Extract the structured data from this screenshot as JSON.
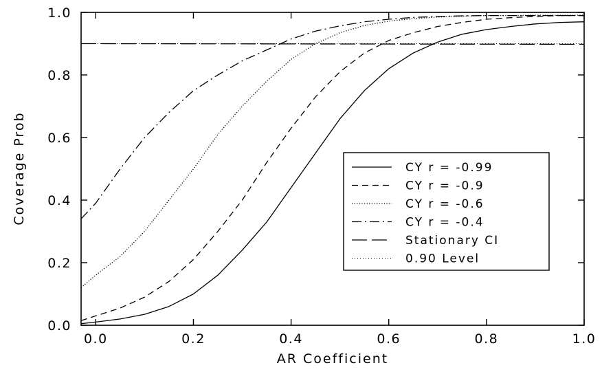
{
  "chart_data": {
    "type": "line",
    "xlabel": "AR Coefficient",
    "ylabel": "Coverage Prob",
    "xlim": [
      -0.03,
      1.0
    ],
    "ylim": [
      0.0,
      1.0
    ],
    "xticks": [
      "0.0",
      "0.2",
      "0.4",
      "0.6",
      "0.8",
      "1.0"
    ],
    "yticks": [
      "0.0",
      "0.2",
      "0.4",
      "0.6",
      "0.8",
      "1.0"
    ],
    "grid": false,
    "legend_position": "center-right",
    "series": [
      {
        "name": "CY r = -0.99",
        "dash": "solid",
        "x": [
          -0.03,
          0.0,
          0.05,
          0.1,
          0.15,
          0.2,
          0.25,
          0.3,
          0.35,
          0.4,
          0.45,
          0.5,
          0.55,
          0.6,
          0.65,
          0.7,
          0.75,
          0.8,
          0.85,
          0.9,
          0.95,
          1.0
        ],
        "y": [
          0.005,
          0.01,
          0.02,
          0.035,
          0.06,
          0.1,
          0.16,
          0.24,
          0.33,
          0.44,
          0.55,
          0.66,
          0.75,
          0.82,
          0.87,
          0.905,
          0.93,
          0.945,
          0.955,
          0.963,
          0.968,
          0.97
        ]
      },
      {
        "name": "CY r = -0.9",
        "dash": "dashed",
        "x": [
          -0.03,
          0.0,
          0.05,
          0.1,
          0.15,
          0.2,
          0.25,
          0.3,
          0.35,
          0.4,
          0.45,
          0.5,
          0.55,
          0.6,
          0.65,
          0.7,
          0.75,
          0.8,
          0.85,
          0.9,
          0.95,
          1.0
        ],
        "y": [
          0.015,
          0.03,
          0.055,
          0.09,
          0.14,
          0.21,
          0.3,
          0.4,
          0.52,
          0.63,
          0.73,
          0.81,
          0.87,
          0.91,
          0.935,
          0.955,
          0.968,
          0.978,
          0.983,
          0.987,
          0.99,
          0.99
        ]
      },
      {
        "name": "CY r = -0.6",
        "dash": "dotted",
        "x": [
          -0.03,
          0.0,
          0.05,
          0.1,
          0.15,
          0.2,
          0.25,
          0.3,
          0.35,
          0.4,
          0.45,
          0.5,
          0.55,
          0.6,
          0.65,
          0.7,
          0.75,
          0.8,
          0.85,
          0.9,
          0.95,
          1.0
        ],
        "y": [
          0.12,
          0.16,
          0.22,
          0.3,
          0.4,
          0.5,
          0.61,
          0.7,
          0.78,
          0.85,
          0.9,
          0.935,
          0.958,
          0.972,
          0.98,
          0.985,
          0.988,
          0.99,
          0.99,
          0.991,
          0.991,
          0.991
        ]
      },
      {
        "name": "CY r = -0.4",
        "dash": "dash-dot",
        "x": [
          -0.03,
          0.0,
          0.05,
          0.1,
          0.15,
          0.2,
          0.25,
          0.3,
          0.35,
          0.4,
          0.45,
          0.5,
          0.55,
          0.6,
          0.65,
          0.7,
          0.75,
          0.8,
          0.85,
          0.9,
          0.95,
          1.0
        ],
        "y": [
          0.34,
          0.39,
          0.5,
          0.6,
          0.68,
          0.75,
          0.8,
          0.845,
          0.88,
          0.915,
          0.94,
          0.957,
          0.97,
          0.978,
          0.984,
          0.987,
          0.989,
          0.99,
          0.99,
          0.99,
          0.99,
          0.99
        ]
      },
      {
        "name": "Stationary CI",
        "dash": "long-dash",
        "x": [
          -0.03,
          1.0
        ],
        "y": [
          0.9,
          0.898
        ]
      },
      {
        "name": "0.90 Level",
        "dash": "fine-dot",
        "x": [
          -0.03,
          1.0
        ],
        "y": [
          0.9,
          0.9
        ]
      }
    ]
  }
}
